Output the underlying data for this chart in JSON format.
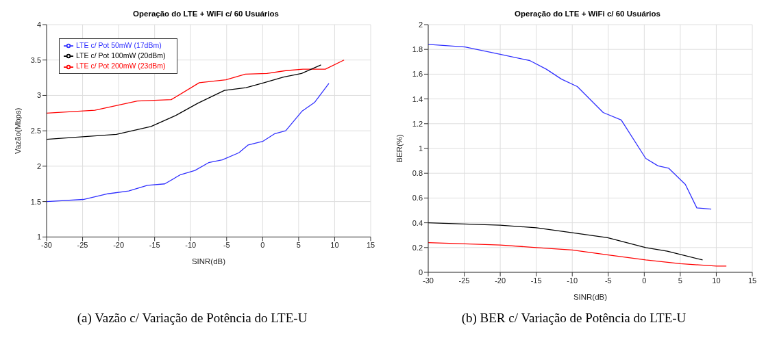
{
  "chart_data": [
    {
      "type": "line",
      "title": "Operação do LTE + WiFi c/ 60 Usuários",
      "xlabel": "SINR(dB)",
      "ylabel": "Vazão(Mbps)",
      "annotations": [
        "(a)  Vazão c/ Variação de Potência do LTE-U"
      ],
      "xlim": [
        -30,
        15
      ],
      "xticks": [
        -30,
        -25,
        -20,
        -15,
        -10,
        -5,
        0,
        5,
        10,
        15
      ],
      "ylim": [
        1,
        4
      ],
      "yticks": [
        1,
        1.5,
        2,
        2.5,
        3,
        3.5,
        4
      ],
      "grid": true,
      "legend": "top left",
      "series": [
        {
          "name": "LTE c/ Pot 200mW (23dBm)",
          "color": "#ff0000",
          "x": [
            -30,
            -23.3,
            -17.4,
            -12.7,
            -8.8,
            -5.1,
            -2.4,
            0.6,
            3.2,
            5.6,
            8.7,
            11.3
          ],
          "values": [
            2.75,
            2.79,
            2.92,
            2.94,
            3.18,
            3.22,
            3.3,
            3.31,
            3.35,
            3.37,
            3.37,
            3.5
          ]
        },
        {
          "name": "LTE c/ Pot 100mW (20dBm)",
          "color": "#000000",
          "x": [
            -30,
            -20.3,
            -15.5,
            -12,
            -9,
            -5.3,
            -2.3,
            0.2,
            2.9,
            5.4,
            8.1
          ],
          "values": [
            2.38,
            2.45,
            2.56,
            2.72,
            2.89,
            3.07,
            3.11,
            3.18,
            3.26,
            3.31,
            3.43
          ]
        },
        {
          "name": "LTE c/ Pot  50mW (17dBm)",
          "color": "#3030ff",
          "x": [
            -30,
            -24.9,
            -21.5,
            -18.6,
            -16,
            -13.6,
            -11.4,
            -9.4,
            -7.5,
            -5.6,
            -3.3,
            -2,
            0,
            1.7,
            3.2,
            5.5,
            7.2,
            9.2
          ],
          "values": [
            1.5,
            1.53,
            1.61,
            1.65,
            1.73,
            1.75,
            1.88,
            1.94,
            2.05,
            2.09,
            2.19,
            2.3,
            2.35,
            2.46,
            2.5,
            2.78,
            2.9,
            3.17
          ]
        }
      ]
    },
    {
      "type": "line",
      "title": "Operação do LTE + WiFi c/ 60 Usuários",
      "xlabel": "SINR(dB)",
      "ylabel": "BER(%)",
      "annotations": [
        "(b)  BER c/ Variação de Potência do LTE-U"
      ],
      "xlim": [
        -30,
        15
      ],
      "xticks": [
        -30,
        -25,
        -20,
        -15,
        -10,
        -5,
        0,
        5,
        10,
        15
      ],
      "ylim": [
        0,
        2
      ],
      "yticks": [
        0,
        0.2,
        0.4,
        0.6,
        0.8,
        1,
        1.2,
        1.4,
        1.6,
        1.8,
        2
      ],
      "grid": true,
      "series": [
        {
          "color": "#3030ff",
          "x": [
            -30,
            -24.9,
            -20,
            -15.9,
            -13.6,
            -11.5,
            -9.3,
            -5.7,
            -3.2,
            0.2,
            1.9,
            3.4,
            5.7,
            7.3,
            9.3
          ],
          "values": [
            1.84,
            1.82,
            1.76,
            1.71,
            1.64,
            1.56,
            1.5,
            1.29,
            1.23,
            0.92,
            0.86,
            0.84,
            0.71,
            0.52,
            0.51
          ]
        },
        {
          "color": "#000000",
          "x": [
            -30,
            -20,
            -15,
            -10,
            -5.1,
            0.2,
            3.2,
            8.1
          ],
          "values": [
            0.4,
            0.38,
            0.36,
            0.32,
            0.28,
            0.2,
            0.17,
            0.1
          ]
        },
        {
          "color": "#ff0000",
          "x": [
            -30,
            -24.9,
            -20,
            -15,
            -10,
            -5,
            0.2,
            5,
            10,
            11.4
          ],
          "values": [
            0.24,
            0.23,
            0.22,
            0.2,
            0.18,
            0.14,
            0.1,
            0.07,
            0.05,
            0.05
          ]
        }
      ]
    }
  ]
}
